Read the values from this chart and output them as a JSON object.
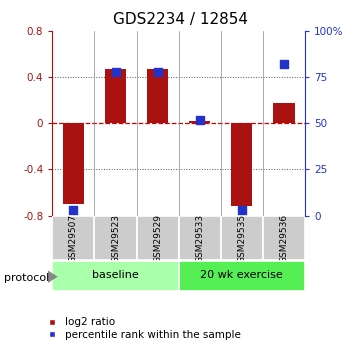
{
  "title": "GDS2234 / 12854",
  "samples": [
    "GSM29507",
    "GSM29523",
    "GSM29529",
    "GSM29533",
    "GSM29535",
    "GSM29536"
  ],
  "log2_ratio": [
    -0.7,
    0.47,
    0.47,
    0.02,
    -0.72,
    0.18
  ],
  "percentile_rank": [
    3,
    78,
    78,
    52,
    3,
    82
  ],
  "bar_color": "#aa1111",
  "dot_color": "#2233cc",
  "ylim_left": [
    -0.8,
    0.8
  ],
  "ylim_right": [
    0,
    100
  ],
  "yticks_left": [
    -0.8,
    -0.4,
    0.0,
    0.4,
    0.8
  ],
  "yticks_right": [
    0,
    25,
    50,
    75,
    100
  ],
  "groups": [
    {
      "label": "baseline",
      "indices": [
        0,
        1,
        2
      ],
      "color": "#aaffaa"
    },
    {
      "label": "20 wk exercise",
      "indices": [
        3,
        4,
        5
      ],
      "color": "#55ee55"
    }
  ],
  "protocol_label": "protocol",
  "legend_ratio_label": "log2 ratio",
  "legend_pct_label": "percentile rank within the sample",
  "hline_color": "#cc0000",
  "dotted_line_color": "#555555",
  "bar_width": 0.5,
  "dot_size": 40,
  "title_fontsize": 11,
  "tick_fontsize": 7.5,
  "sample_fontsize": 6.5,
  "group_fontsize": 8,
  "legend_fontsize": 7.5
}
